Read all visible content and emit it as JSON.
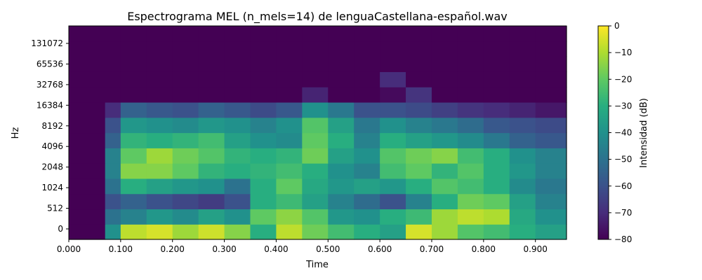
{
  "chart_data": {
    "type": "heatmap",
    "title": "Espectrograma MEL (n_mels=14) de lenguaCastellana-español.wav",
    "xlabel": "Time",
    "ylabel": "Hz",
    "xlim": [
      0.0,
      0.96
    ],
    "x_ticks": [
      "0.000",
      "0.100",
      "0.200",
      "0.300",
      "0.400",
      "0.500",
      "0.600",
      "0.700",
      "0.800",
      "0.900"
    ],
    "y_ticks": [
      "0",
      "512",
      "1024",
      "2048",
      "4096",
      "8192",
      "16384",
      "32768",
      "65536",
      "131072"
    ],
    "colormap": "viridis",
    "colorbar": {
      "label": "Intensidad (dB)",
      "range": [
        -80,
        0
      ],
      "ticks": [
        "0",
        "−10",
        "−20",
        "−30",
        "−40",
        "−50",
        "−60",
        "−70",
        "−80"
      ]
    },
    "time_bins": [
      0.0,
      0.07,
      0.1,
      0.15,
      0.2,
      0.25,
      0.3,
      0.35,
      0.4,
      0.45,
      0.5,
      0.55,
      0.6,
      0.65,
      0.7,
      0.75,
      0.8,
      0.85,
      0.9,
      0.96
    ],
    "mel_bands_low_to_high": [
      [
        -80,
        -40,
        -8,
        -5,
        -12,
        -6,
        -15,
        -30,
        -8,
        -18,
        -25,
        -30,
        -35,
        -5,
        -12,
        -22,
        -25,
        -30,
        -35
      ],
      [
        -80,
        -50,
        -45,
        -38,
        -42,
        -35,
        -40,
        -20,
        -14,
        -22,
        -38,
        -40,
        -30,
        -26,
        -12,
        -8,
        -10,
        -32,
        -40
      ],
      [
        -80,
        -60,
        -55,
        -60,
        -63,
        -66,
        -60,
        -30,
        -26,
        -35,
        -45,
        -52,
        -60,
        -45,
        -30,
        -18,
        -20,
        -35,
        -45
      ],
      [
        -80,
        -50,
        -30,
        -35,
        -38,
        -40,
        -50,
        -30,
        -20,
        -32,
        -38,
        -35,
        -38,
        -30,
        -22,
        -25,
        -30,
        -42,
        -48
      ],
      [
        -80,
        -45,
        -15,
        -15,
        -20,
        -28,
        -30,
        -28,
        -25,
        -30,
        -40,
        -45,
        -25,
        -20,
        -28,
        -22,
        -30,
        -38,
        -45
      ],
      [
        -80,
        -45,
        -20,
        -12,
        -18,
        -22,
        -28,
        -30,
        -28,
        -18,
        -35,
        -40,
        -22,
        -18,
        -15,
        -25,
        -30,
        -40,
        -45
      ],
      [
        -80,
        -55,
        -28,
        -30,
        -28,
        -25,
        -35,
        -40,
        -42,
        -20,
        -30,
        -45,
        -30,
        -35,
        -38,
        -42,
        -48,
        -55,
        -58
      ],
      [
        -80,
        -60,
        -38,
        -40,
        -42,
        -38,
        -40,
        -45,
        -40,
        -22,
        -35,
        -48,
        -40,
        -45,
        -48,
        -52,
        -58,
        -60,
        -62
      ],
      [
        -80,
        -70,
        -55,
        -58,
        -60,
        -55,
        -58,
        -62,
        -58,
        -40,
        -48,
        -60,
        -60,
        -62,
        -65,
        -68,
        -70,
        -72,
        -75
      ],
      [
        -80,
        -80,
        -80,
        -80,
        -80,
        -80,
        -80,
        -80,
        -80,
        -72,
        -80,
        -80,
        -78,
        -68,
        -80,
        -80,
        -80,
        -80,
        -80
      ],
      [
        -80,
        -80,
        -80,
        -80,
        -80,
        -80,
        -80,
        -80,
        -80,
        -80,
        -80,
        -80,
        -70,
        -80,
        -80,
        -80,
        -80,
        -80,
        -80
      ],
      [
        -80,
        -80,
        -80,
        -80,
        -80,
        -80,
        -80,
        -80,
        -80,
        -80,
        -80,
        -80,
        -80,
        -80,
        -80,
        -80,
        -80,
        -80,
        -80
      ],
      [
        -80,
        -80,
        -80,
        -80,
        -80,
        -80,
        -80,
        -80,
        -80,
        -80,
        -80,
        -80,
        -80,
        -80,
        -80,
        -80,
        -80,
        -80,
        -80
      ],
      [
        -80,
        -80,
        -80,
        -80,
        -80,
        -80,
        -80,
        -80,
        -80,
        -80,
        -80,
        -80,
        -80,
        -80,
        -80,
        -80,
        -80,
        -80,
        -80
      ]
    ]
  }
}
